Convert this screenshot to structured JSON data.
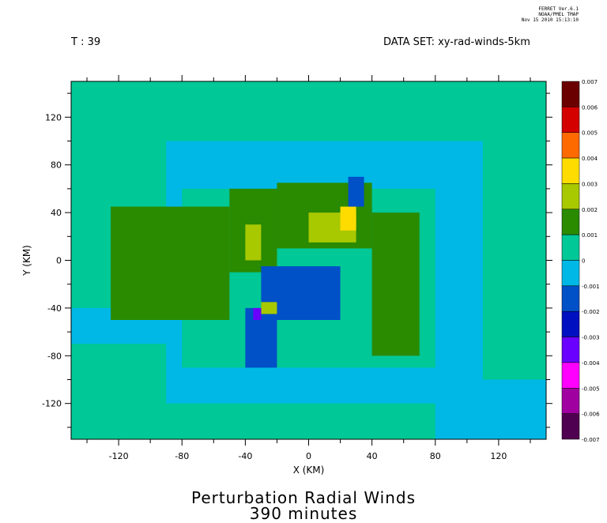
{
  "header": {
    "stamp_lines": [
      "FERRET Ver.6.1",
      "NOAA/PMEL TMAP",
      "Nov 15 2010 15:13:10"
    ],
    "time_label": "T : 39",
    "dataset_label": "DATA SET: xy-rad-winds-5km"
  },
  "titles": {
    "line1": "Perturbation Radial Winds",
    "line2": "390 minutes"
  },
  "chart_data": {
    "type": "heatmap",
    "xlabel": "X (KM)",
    "ylabel": "Y (KM)",
    "xlim": [
      -150,
      150
    ],
    "ylim": [
      -150,
      150
    ],
    "x_ticks": [
      -120,
      -80,
      -40,
      0,
      40,
      80,
      120
    ],
    "y_ticks": [
      120,
      80,
      40,
      0,
      -40,
      -80,
      -120
    ],
    "x_tick_labels": [
      "-120",
      "-80",
      "-40",
      "0",
      "40",
      "80",
      "120"
    ],
    "y_tick_labels": [
      "120",
      "80",
      "40",
      "0",
      "-40",
      "-80",
      "-120"
    ],
    "colorbar": {
      "levels": [
        "0.007",
        "0.006",
        "0.005",
        "0.004",
        "0.003",
        "0.002",
        "0.001",
        "0",
        "-0.001",
        "-0.002",
        "-0.003",
        "-0.004",
        "-0.005",
        "-0.006",
        "-0.007"
      ],
      "colors": [
        "#6b0000",
        "#d40000",
        "#ff6a00",
        "#ffdc00",
        "#a8c800",
        "#2a8a00",
        "#00c896",
        "#00b8e6",
        "#0050c8",
        "#0010c0",
        "#6a00ff",
        "#ff00ff",
        "#a000a0",
        "#500050"
      ]
    },
    "background_value": 0.0005,
    "regions": [
      {
        "x": [
          -150,
          150
        ],
        "y": [
          -150,
          150
        ],
        "value": 0.0005
      },
      {
        "x": [
          -90,
          110
        ],
        "y": [
          -120,
          100
        ],
        "value": -0.0005
      },
      {
        "x": [
          80,
          150
        ],
        "y": [
          -150,
          -100
        ],
        "value": -0.0005
      },
      {
        "x": [
          -150,
          -60
        ],
        "y": [
          -70,
          -40
        ],
        "value": -0.0005
      },
      {
        "x": [
          -80,
          80
        ],
        "y": [
          -90,
          60
        ],
        "value": 0.0005
      },
      {
        "x": [
          -125,
          -50
        ],
        "y": [
          -50,
          45
        ],
        "value": 0.0015
      },
      {
        "x": [
          -50,
          -20
        ],
        "y": [
          -10,
          60
        ],
        "value": 0.0015
      },
      {
        "x": [
          -20,
          40
        ],
        "y": [
          10,
          65
        ],
        "value": 0.0015
      },
      {
        "x": [
          40,
          70
        ],
        "y": [
          -80,
          40
        ],
        "value": 0.0015
      },
      {
        "x": [
          0,
          30
        ],
        "y": [
          15,
          40
        ],
        "value": 0.0025
      },
      {
        "x": [
          -40,
          -30
        ],
        "y": [
          0,
          30
        ],
        "value": 0.0025
      },
      {
        "x": [
          20,
          30
        ],
        "y": [
          25,
          45
        ],
        "value": 0.0035
      },
      {
        "x": [
          -30,
          20
        ],
        "y": [
          -50,
          -5
        ],
        "value": -0.0015
      },
      {
        "x": [
          -40,
          -20
        ],
        "y": [
          -90,
          -40
        ],
        "value": -0.0015
      },
      {
        "x": [
          -30,
          -20
        ],
        "y": [
          -45,
          -35
        ],
        "value": 0.0025
      },
      {
        "x": [
          -35,
          -30
        ],
        "y": [
          -50,
          -40
        ],
        "value": -0.0035
      },
      {
        "x": [
          25,
          35
        ],
        "y": [
          45,
          70
        ],
        "value": -0.0015
      }
    ]
  }
}
